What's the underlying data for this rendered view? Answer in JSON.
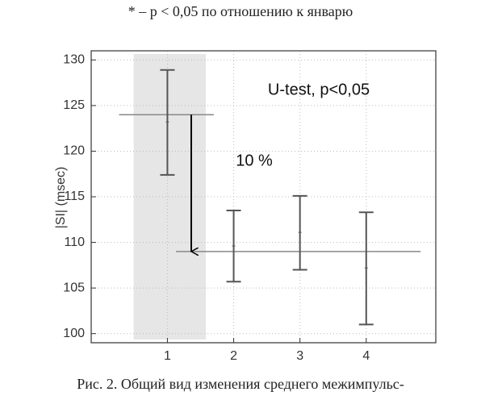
{
  "header": "* – p < 0,05 по отношению к январю",
  "caption": "Рис. 2. Общий вид изменения среднего межимпульс-",
  "chart_data": {
    "type": "errorbar",
    "ylabel": "|SI| (msec)",
    "x": [
      1,
      2,
      3,
      4
    ],
    "values": [
      123.2,
      109.6,
      111.1,
      107.2
    ],
    "low": [
      117.4,
      105.7,
      107,
      101
    ],
    "high": [
      128.9,
      113.5,
      115.1,
      113.3
    ],
    "color": "#555555",
    "xlim": [
      -0.15,
      5.05
    ],
    "xticks": [
      1,
      2,
      3,
      4
    ],
    "ylim": [
      99,
      131
    ],
    "yticks": [
      100,
      105,
      110,
      115,
      120,
      125,
      130
    ],
    "grid": true,
    "shaded_x": [
      0.49,
      1.58
    ],
    "reference_lines": [
      {
        "y": 124,
        "x": [
          0.27,
          1.7
        ]
      },
      {
        "y": 109,
        "x": [
          1.13,
          4.82
        ]
      }
    ],
    "arrow": {
      "x": 1.36,
      "y": [
        124,
        109
      ]
    },
    "annotations": [
      "U-test, p<0,05",
      "10 %"
    ]
  }
}
